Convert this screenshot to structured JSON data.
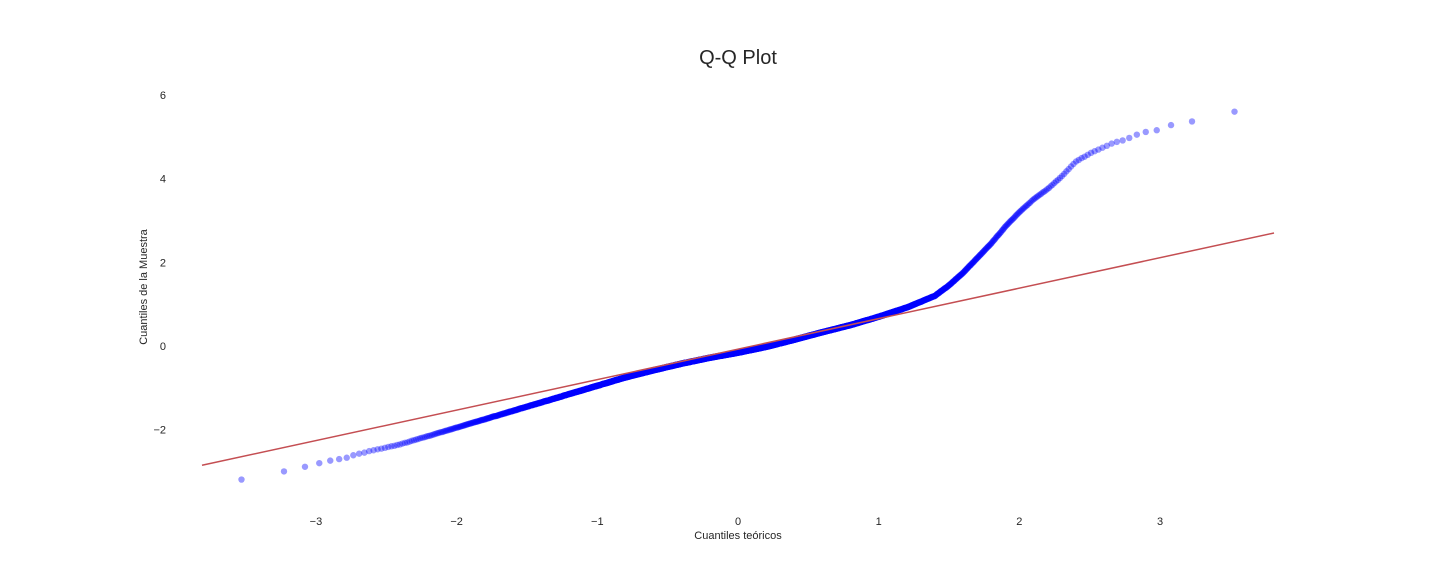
{
  "chart_data": {
    "type": "scatter",
    "title": "Q-Q Plot",
    "xlabel": "Cuantiles teóricos",
    "ylabel": "Cuantiles de la Muestra",
    "xlim": [
      -3.81,
      3.81
    ],
    "ylim": [
      -3.8,
      6.5
    ],
    "xticks": [
      -3,
      -2,
      -1,
      0,
      1,
      2,
      3
    ],
    "yticks": [
      -2,
      0,
      2,
      4,
      6
    ],
    "x_tick_labels": [
      "−3",
      "−2",
      "−1",
      "0",
      "1",
      "2",
      "3"
    ],
    "y_tick_labels": [
      "−2",
      "0",
      "2",
      "4",
      "6"
    ],
    "grid": false,
    "colors": {
      "points": "#0000ff",
      "reference_line": "#c44e52",
      "text": "#262626"
    },
    "reference_line": {
      "x": [
        -3.81,
        3.81
      ],
      "y": [
        -2.85,
        2.7
      ]
    },
    "sample_curve": {
      "x": [
        -3.81,
        -3.63,
        -3.45,
        -3.3,
        -3.2,
        -3.1,
        -3.0,
        -2.9,
        -2.8,
        -2.6,
        -2.4,
        -2.2,
        -2.0,
        -1.8,
        -1.6,
        -1.4,
        -1.2,
        -1.0,
        -0.8,
        -0.6,
        -0.4,
        -0.2,
        0.0,
        0.2,
        0.4,
        0.6,
        0.8,
        1.0,
        1.2,
        1.4,
        1.5,
        1.6,
        1.7,
        1.8,
        1.9,
        2.0,
        2.1,
        2.2,
        2.3,
        2.4,
        2.5,
        2.6,
        2.7,
        2.8,
        2.9,
        3.0,
        3.1,
        3.2,
        3.3,
        3.4,
        3.5,
        3.63,
        3.81
      ],
      "y": [
        -3.25,
        -3.2,
        -3.15,
        -3.05,
        -3.0,
        -2.9,
        -2.8,
        -2.75,
        -2.68,
        -2.5,
        -2.35,
        -2.15,
        -1.95,
        -1.75,
        -1.55,
        -1.35,
        -1.15,
        -0.95,
        -0.75,
        -0.58,
        -0.42,
        -0.28,
        -0.16,
        -0.02,
        0.15,
        0.33,
        0.5,
        0.7,
        0.92,
        1.2,
        1.45,
        1.75,
        2.1,
        2.45,
        2.85,
        3.2,
        3.5,
        3.75,
        4.05,
        4.4,
        4.6,
        4.75,
        4.88,
        5.0,
        5.1,
        5.2,
        5.28,
        5.36,
        5.42,
        5.48,
        5.53,
        5.78,
        6.12
      ]
    },
    "sample_points_count": 2400
  }
}
